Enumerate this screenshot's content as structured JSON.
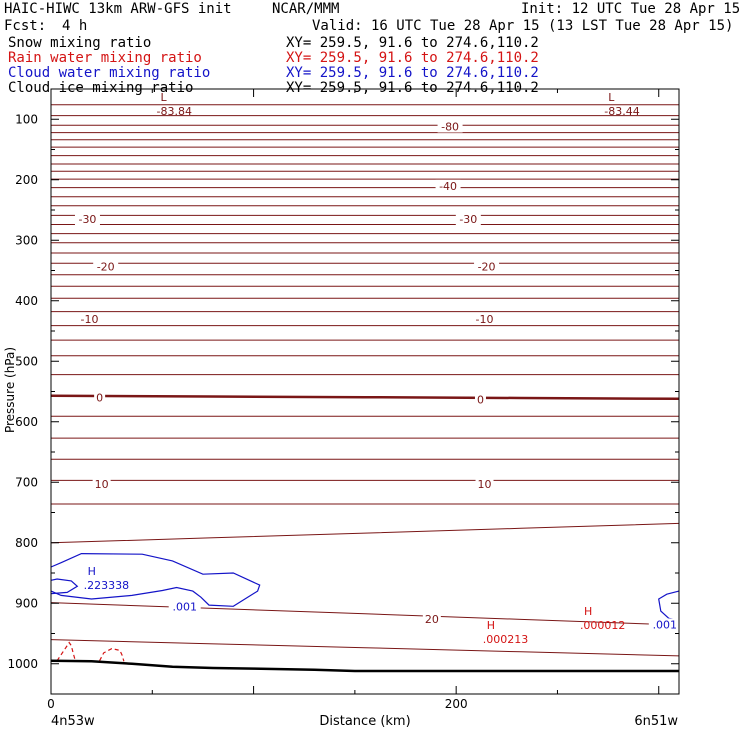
{
  "header": {
    "model": "HAIC-HIWC 13km ARW-GFS init",
    "center": "NCAR/MMM",
    "init": "Init: 12 UTC Tue 28 Apr 15",
    "fcst_label": "Fcst:",
    "fcst_value": "4 h",
    "valid": "Valid: 16 UTC Tue 28 Apr 15 (13 LST Tue 28 Apr 15)"
  },
  "fields": [
    {
      "name": "Snow mixing ratio",
      "xy": "XY= 259.5, 91.6 to 274.6,110.2",
      "color": "#000000"
    },
    {
      "name": "Rain water mixing ratio",
      "xy": "XY= 259.5, 91.6 to 274.6,110.2",
      "color": "#d41414"
    },
    {
      "name": "Cloud water mixing ratio",
      "xy": "XY= 259.5, 91.6 to 274.6,110.2",
      "color": "#1414c8"
    },
    {
      "name": "Cloud ice mixing ratio",
      "xy": "XY= 259.5, 91.6 to 274.6,110.2",
      "color": "#000000"
    }
  ],
  "chart_data": {
    "type": "line",
    "xlabel": "Distance (km)",
    "ylabel": "Pressure (hPa)",
    "xlim": [
      0,
      310
    ],
    "ylim": [
      1050,
      50
    ],
    "y_scale": "linear, inverted",
    "x_ticks": [
      0,
      200
    ],
    "x_tick_labels": [
      "0",
      "200"
    ],
    "y_ticks": [
      100,
      200,
      300,
      400,
      500,
      600,
      700,
      800,
      900,
      1000
    ],
    "y_tick_labels": [
      "100",
      "200",
      "300",
      "400",
      "500",
      "600",
      "700",
      "800",
      "900",
      "1000"
    ],
    "endpoint_labels": {
      "left": "4n53w",
      "right": "6n51w"
    },
    "colors": {
      "temperature": "#7a1616",
      "terrain": "#000000",
      "cloud_water": "#1414c8",
      "rain": "#d41414"
    },
    "temperature_contours": [
      {
        "p_left": 76,
        "p_right": 76
      },
      {
        "p_left": 94,
        "p_right": 94
      },
      {
        "p_left": 110,
        "p_right": 110
      },
      {
        "p_left": 122,
        "p_right": 122
      },
      {
        "p_left": 134,
        "p_right": 134
      },
      {
        "p_left": 146,
        "p_right": 146
      },
      {
        "p_left": 160,
        "p_right": 160
      },
      {
        "p_left": 174,
        "p_right": 174
      },
      {
        "p_left": 186,
        "p_right": 186
      },
      {
        "p_left": 199,
        "p_right": 199
      },
      {
        "p_left": 213,
        "p_right": 213
      },
      {
        "p_left": 228,
        "p_right": 228
      },
      {
        "p_left": 243,
        "p_right": 243
      },
      {
        "p_left": 259,
        "p_right": 259
      },
      {
        "p_left": 274,
        "p_right": 274
      },
      {
        "p_left": 289,
        "p_right": 289
      },
      {
        "p_left": 304,
        "p_right": 304
      },
      {
        "p_left": 321,
        "p_right": 321
      },
      {
        "p_left": 338,
        "p_right": 338
      },
      {
        "p_left": 357,
        "p_right": 357
      },
      {
        "p_left": 376,
        "p_right": 376
      },
      {
        "p_left": 396,
        "p_right": 396
      },
      {
        "p_left": 418,
        "p_right": 418
      },
      {
        "p_left": 441,
        "p_right": 441
      },
      {
        "p_left": 465,
        "p_right": 465
      },
      {
        "p_left": 491,
        "p_right": 491
      },
      {
        "p_left": 522,
        "p_right": 522
      },
      {
        "p_left": 557,
        "p_right": 562
      },
      {
        "p_left": 591,
        "p_right": 591
      },
      {
        "p_left": 627,
        "p_right": 627
      },
      {
        "p_left": 662,
        "p_right": 662
      },
      {
        "p_left": 697,
        "p_right": 697
      },
      {
        "p_left": 736,
        "p_right": 736
      },
      {
        "p_left": 800,
        "p_right": 768
      },
      {
        "p_left": 899,
        "p_right": 936
      },
      {
        "p_left": 960,
        "p_right": 987
      }
    ],
    "contour_labels": [
      {
        "text": "-80",
        "x": 197,
        "p": 112
      },
      {
        "text": "-40",
        "x": 196,
        "p": 210
      },
      {
        "text": "-30",
        "x": 18,
        "p": 265
      },
      {
        "text": "-30",
        "x": 206,
        "p": 265
      },
      {
        "text": "-20",
        "x": 27,
        "p": 343
      },
      {
        "text": "-20",
        "x": 215,
        "p": 343
      },
      {
        "text": "-10",
        "x": 19,
        "p": 430
      },
      {
        "text": "-10",
        "x": 214,
        "p": 430
      },
      {
        "text": "0",
        "x": 24,
        "p": 560
      },
      {
        "text": "0",
        "x": 212,
        "p": 563
      },
      {
        "text": "10",
        "x": 25,
        "p": 703
      },
      {
        "text": "10",
        "x": 214,
        "p": 703
      },
      {
        "text": "20",
        "x": 188,
        "p": 926
      },
      {
        "text": ".001",
        "x": 66,
        "p": 905
      },
      {
        "text": ".001",
        "x": 303,
        "p": 935
      }
    ],
    "extrema": [
      {
        "kind": "L",
        "value": "-83.84",
        "x": 60,
        "p": 90
      },
      {
        "kind": "L",
        "value": "-83.44",
        "x": 281,
        "p": 90
      },
      {
        "kind": "H",
        "value": ".223338",
        "x": 24,
        "p": 873
      },
      {
        "kind": "H",
        "value": ".000012",
        "x": 269,
        "p": 939
      },
      {
        "kind": "H",
        "value": ".000213",
        "x": 221,
        "p": 962
      }
    ],
    "terrain": {
      "x": [
        0,
        20,
        40,
        60,
        80,
        100,
        130,
        150,
        200,
        250,
        300,
        310
      ],
      "p": [
        995,
        996,
        1000,
        1005,
        1007,
        1008,
        1010,
        1012,
        1012,
        1012,
        1012,
        1012
      ]
    },
    "cloud_water_contours": [
      {
        "x": [
          0,
          5,
          15,
          45,
          60,
          75,
          90,
          103,
          102,
          90,
          78,
          74,
          70,
          62,
          55,
          40,
          20,
          5,
          0
        ],
        "p": [
          840,
          833,
          818,
          819,
          830,
          852,
          850,
          870,
          880,
          905,
          903,
          890,
          880,
          874,
          879,
          887,
          893,
          887,
          880
        ]
      },
      {
        "x": [
          0,
          3,
          10,
          13,
          8,
          0
        ],
        "p": [
          862,
          860,
          863,
          872,
          882,
          884
        ]
      },
      {
        "x": [
          310,
          304,
          300,
          301,
          305,
          310
        ],
        "p": [
          880,
          885,
          893,
          913,
          925,
          928
        ]
      }
    ],
    "rain_contours": [
      {
        "x": [
          3,
          6,
          9,
          10,
          11,
          12
        ],
        "p": [
          995,
          980,
          965,
          970,
          983,
          995
        ]
      },
      {
        "x": [
          24,
          26,
          30,
          34,
          35,
          36
        ],
        "p": [
          995,
          982,
          975,
          978,
          985,
          996
        ]
      }
    ]
  }
}
